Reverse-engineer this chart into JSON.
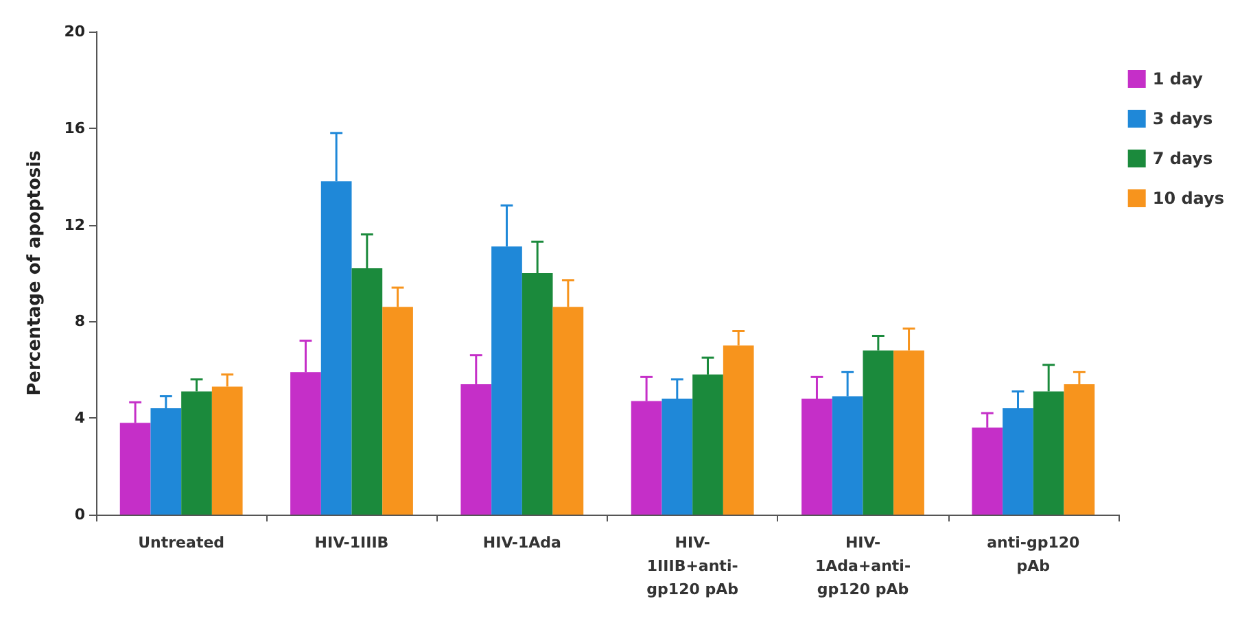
{
  "chart_data": {
    "type": "bar",
    "ylabel": "Percentage of apoptosis",
    "categories": [
      "Untreated",
      "HIV-1IIIB",
      "HIV-1Ada",
      "HIV-\n1IIIB+anti-\ngp120 pAb",
      "HIV-\n1Ada+anti-\ngp120 pAb",
      "anti-gp120\npAb"
    ],
    "series": [
      {
        "name": "1 day",
        "color": "#c52fc8",
        "values": [
          3.8,
          5.9,
          5.4,
          4.7,
          4.8,
          3.6
        ],
        "errors": [
          [
            3.8,
            4.65
          ],
          [
            5.9,
            7.2
          ],
          [
            5.4,
            6.6
          ],
          [
            4.7,
            5.7
          ],
          [
            4.8,
            5.7
          ],
          [
            3.6,
            4.2
          ]
        ]
      },
      {
        "name": "3 days",
        "color": "#1f88d8",
        "values": [
          4.4,
          13.8,
          11.1,
          4.8,
          4.9,
          4.4
        ],
        "errors": [
          [
            4.4,
            4.9
          ],
          [
            13.8,
            15.8
          ],
          [
            11.1,
            12.8
          ],
          [
            4.8,
            5.6
          ],
          [
            4.9,
            5.9
          ],
          [
            4.4,
            5.1
          ]
        ]
      },
      {
        "name": "7 days",
        "color": "#1b8a3c",
        "values": [
          5.1,
          10.2,
          10.0,
          5.8,
          6.8,
          5.1
        ],
        "errors": [
          [
            5.1,
            5.6
          ],
          [
            10.2,
            11.6
          ],
          [
            10.0,
            11.3
          ],
          [
            5.8,
            6.5
          ],
          [
            6.8,
            7.4
          ],
          [
            5.1,
            6.2
          ]
        ]
      },
      {
        "name": "10 days",
        "color": "#f7941d",
        "values": [
          5.3,
          8.6,
          8.6,
          7.0,
          6.8,
          5.4
        ],
        "errors": [
          [
            5.3,
            5.8
          ],
          [
            8.6,
            9.4
          ],
          [
            8.6,
            9.7
          ],
          [
            7.0,
            7.6
          ],
          [
            6.8,
            7.7
          ],
          [
            5.4,
            5.9
          ]
        ]
      }
    ],
    "ylim": [
      0,
      20
    ],
    "yticks": [
      0,
      4,
      8,
      12,
      16,
      20
    ],
    "grid": false,
    "legend": "top right"
  }
}
